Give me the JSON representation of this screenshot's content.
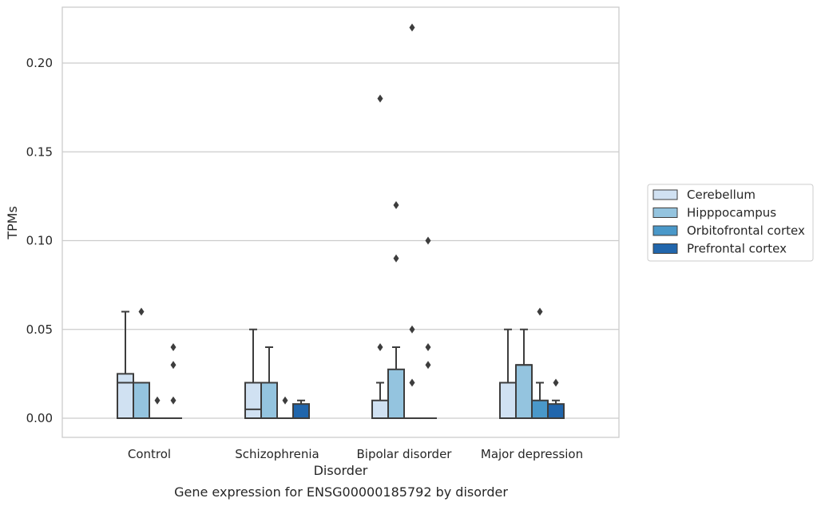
{
  "chart_data": {
    "type": "box",
    "caption": "Gene expression for ENSG00000185792 by disorder",
    "xlabel": "Disorder",
    "ylabel": "TPMs",
    "ylim": [
      -0.011,
      0.232
    ],
    "yticks": [
      0.0,
      0.05,
      0.1,
      0.15,
      0.2
    ],
    "ytick_labels": [
      "0.00",
      "0.05",
      "0.10",
      "0.15",
      "0.20"
    ],
    "grid": "horizontal",
    "legend_position": "right",
    "categories": [
      "Control",
      "Schizophrenia",
      "Bipolar disorder",
      "Major depression"
    ],
    "series": [
      {
        "name": "Cerebellum",
        "color": "#d0e1f2",
        "boxes": [
          {
            "q1": 0.0,
            "median": 0.02,
            "q3": 0.025,
            "whisker_low": 0.0,
            "whisker_high": 0.06,
            "outliers": []
          },
          {
            "q1": 0.0,
            "median": 0.005,
            "q3": 0.02,
            "whisker_low": 0.0,
            "whisker_high": 0.05,
            "outliers": []
          },
          {
            "q1": 0.0,
            "median": 0.0,
            "q3": 0.01,
            "whisker_low": 0.0,
            "whisker_high": 0.02,
            "outliers": [
              0.04,
              0.18
            ]
          },
          {
            "q1": 0.0,
            "median": 0.02,
            "q3": 0.02,
            "whisker_low": 0.0,
            "whisker_high": 0.05,
            "outliers": []
          }
        ]
      },
      {
        "name": "Hipppocampus",
        "color": "#94c4df",
        "boxes": [
          {
            "q1": 0.0,
            "median": 0.02,
            "q3": 0.02,
            "whisker_low": 0.0,
            "whisker_high": 0.02,
            "outliers": [
              0.06
            ]
          },
          {
            "q1": 0.0,
            "median": 0.02,
            "q3": 0.02,
            "whisker_low": 0.0,
            "whisker_high": 0.04,
            "outliers": []
          },
          {
            "q1": 0.0,
            "median": 0.0,
            "q3": 0.0275,
            "whisker_low": 0.0,
            "whisker_high": 0.04,
            "outliers": [
              0.09,
              0.12
            ]
          },
          {
            "q1": 0.0,
            "median": 0.03,
            "q3": 0.03,
            "whisker_low": 0.0,
            "whisker_high": 0.05,
            "outliers": []
          }
        ]
      },
      {
        "name": "Orbitofrontal cortex",
        "color": "#4a98c9",
        "boxes": [
          {
            "q1": 0.0,
            "median": 0.0,
            "q3": 0.0,
            "whisker_low": 0.0,
            "whisker_high": 0.0,
            "outliers": [
              0.01
            ]
          },
          {
            "q1": 0.0,
            "median": 0.0,
            "q3": 0.0,
            "whisker_low": 0.0,
            "whisker_high": 0.0,
            "outliers": [
              0.01
            ]
          },
          {
            "q1": 0.0,
            "median": 0.0,
            "q3": 0.0,
            "whisker_low": 0.0,
            "whisker_high": 0.0,
            "outliers": [
              0.02,
              0.05,
              0.22
            ]
          },
          {
            "q1": 0.0,
            "median": 0.0,
            "q3": 0.01,
            "whisker_low": 0.0,
            "whisker_high": 0.02,
            "outliers": [
              0.06
            ]
          }
        ]
      },
      {
        "name": "Prefrontal cortex",
        "color": "#2166ac",
        "boxes": [
          {
            "q1": 0.0,
            "median": 0.0,
            "q3": 0.0,
            "whisker_low": 0.0,
            "whisker_high": 0.0,
            "outliers": [
              0.01,
              0.03,
              0.04
            ]
          },
          {
            "q1": 0.0,
            "median": 0.0,
            "q3": 0.008,
            "whisker_low": 0.0,
            "whisker_high": 0.01,
            "outliers": []
          },
          {
            "q1": 0.0,
            "median": 0.0,
            "q3": 0.0,
            "whisker_low": 0.0,
            "whisker_high": 0.0,
            "outliers": [
              0.03,
              0.04,
              0.1
            ]
          },
          {
            "q1": 0.0,
            "median": 0.0,
            "q3": 0.008,
            "whisker_low": 0.0,
            "whisker_high": 0.01,
            "outliers": [
              0.02
            ]
          }
        ]
      }
    ]
  }
}
